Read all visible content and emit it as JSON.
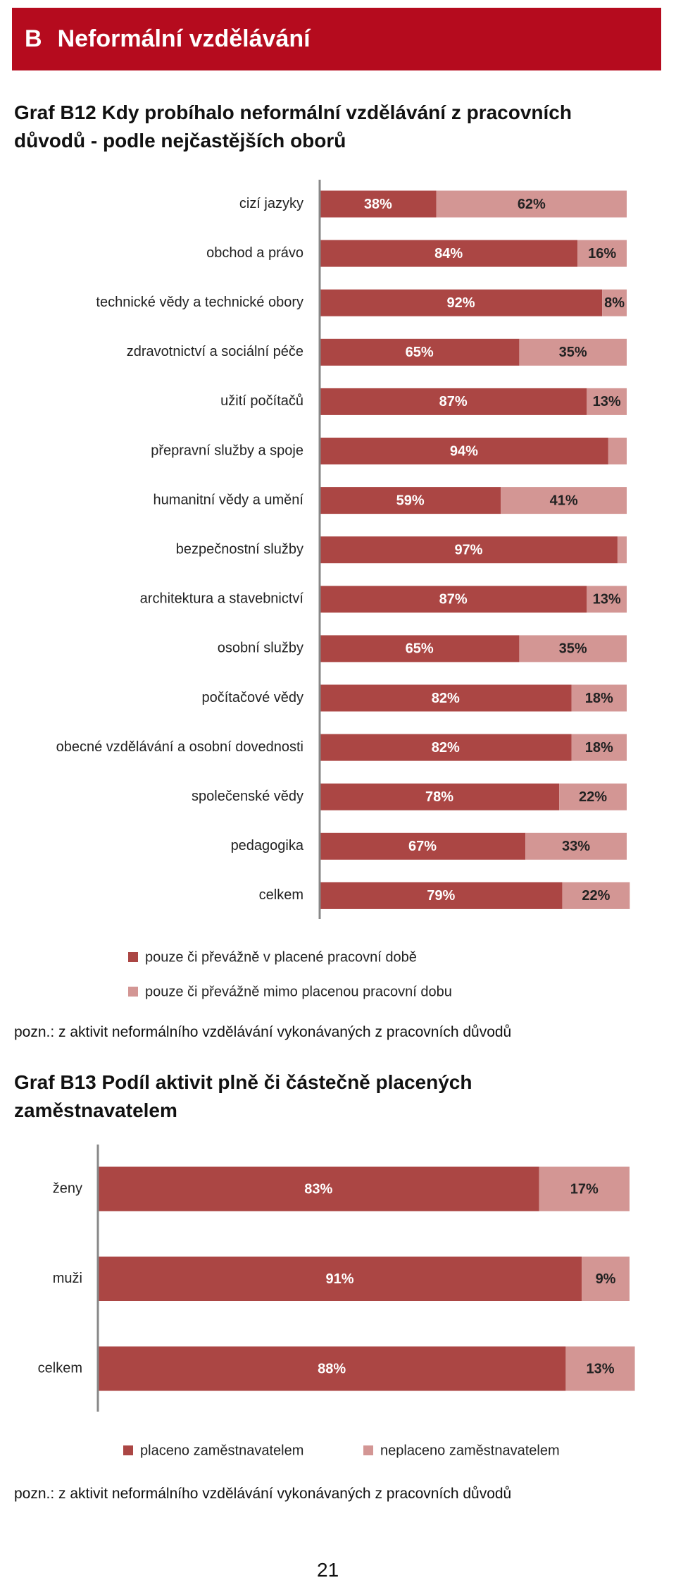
{
  "header": {
    "letter": "B",
    "title": "Neformální vzdělávání"
  },
  "chart_data": [
    {
      "type": "bar",
      "orientation": "horizontal",
      "stacked": true,
      "title": "Graf B12 Kdy probíhalo neformální vzdělávání z pracovních důvodů - podle nejčastějších oborů",
      "categories": [
        "cizí jazyky",
        "obchod a právo",
        "technické vědy a technické obory",
        "zdravotnictví a sociální péče",
        "užití počítačů",
        "přepravní služby a spoje",
        "humanitní vědy a umění",
        "bezpečnostní služby",
        "architektura a stavebnictví",
        "osobní služby",
        "počítačové vědy",
        "obecné vzdělávání a osobní dovednosti",
        "společenské vědy",
        "pedagogika",
        "celkem"
      ],
      "series": [
        {
          "name": "pouze či převážně v placené pracovní době",
          "color": "#ab4644",
          "values": [
            38,
            84,
            92,
            65,
            87,
            94,
            59,
            97,
            87,
            65,
            82,
            82,
            78,
            67,
            79
          ],
          "value_labels": [
            "38%",
            "84%",
            "92%",
            "65%",
            "87%",
            "94%",
            "59%",
            "97%",
            "87%",
            "65%",
            "82%",
            "82%",
            "78%",
            "67%",
            "79%"
          ]
        },
        {
          "name": "pouze či převážně mimo placenou pracovní dobu",
          "color": "#d39694",
          "values": [
            62,
            16,
            8,
            35,
            13,
            6,
            41,
            3,
            13,
            35,
            18,
            18,
            22,
            33,
            22
          ],
          "value_labels": [
            "62%",
            "16%",
            "8%",
            "35%",
            "13%",
            null,
            "41%",
            null,
            "13%",
            "35%",
            "18%",
            "18%",
            "22%",
            "33%",
            "22%"
          ]
        }
      ],
      "xlim": [
        0,
        100
      ],
      "legend": "bottom",
      "note": "pozn.: z aktivit neformálního vzdělávání vykonávaných z pracovních důvodů"
    },
    {
      "type": "bar",
      "orientation": "horizontal",
      "stacked": true,
      "title": "Graf B13 Podíl aktivit plně či částečně placených zaměstnavatelem",
      "categories": [
        "ženy",
        "muži",
        "celkem"
      ],
      "series": [
        {
          "name": "placeno zaměstnavatelem",
          "color": "#ab4644",
          "values": [
            83,
            91,
            88
          ],
          "value_labels": [
            "83%",
            "91%",
            "88%"
          ]
        },
        {
          "name": "neplaceno zaměstnavatelem",
          "color": "#d39694",
          "values": [
            17,
            9,
            13
          ],
          "value_labels": [
            "17%",
            "9%",
            "13%"
          ]
        }
      ],
      "xlim": [
        0,
        100
      ],
      "legend": "bottom",
      "note": "pozn.: z aktivit neformálního vzdělávání vykonávaných z pracovních důvodů"
    }
  ],
  "page_number": "21"
}
